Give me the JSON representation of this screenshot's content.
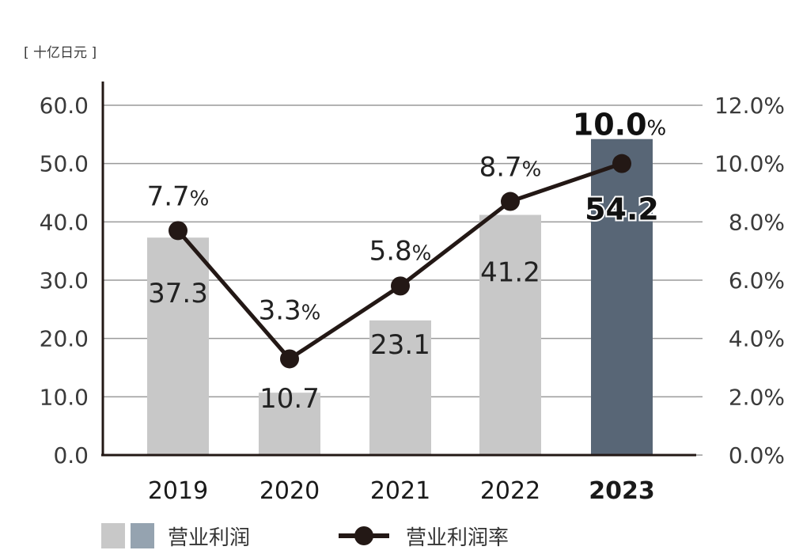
{
  "chart_data": {
    "type": "bar",
    "unit_label": "[ 十亿日元 ]",
    "categories": [
      "2019",
      "2020",
      "2021",
      "2022",
      "2023"
    ],
    "highlight_category": "2023",
    "ylim": [
      0,
      60
    ],
    "yticks": [
      "0.0",
      "10.0",
      "20.0",
      "30.0",
      "40.0",
      "50.0",
      "60.0"
    ],
    "y2lim": [
      0,
      12
    ],
    "y2ticks": [
      "0.0%",
      "2.0%",
      "4.0%",
      "6.0%",
      "8.0%",
      "10.0%",
      "12.0%"
    ],
    "grid": true,
    "series": [
      {
        "name": "营业利润",
        "type": "bar",
        "axis": "left",
        "values": [
          37.3,
          10.7,
          23.1,
          41.2,
          54.2
        ],
        "labels": [
          "37.3",
          "10.7",
          "23.1",
          "41.2",
          "54.2"
        ],
        "color": "#c8c8c8",
        "highlight_color": "#586676"
      },
      {
        "name": "营业利润率",
        "type": "line",
        "axis": "right",
        "values": [
          7.7,
          3.3,
          5.8,
          8.7,
          10.0
        ],
        "labels": [
          "7.7",
          "3.3",
          "5.8",
          "8.7",
          "10.0"
        ],
        "label_unit": "%",
        "color": "#231815"
      }
    ],
    "legend": {
      "position": "bottom-left",
      "bar_swatch_colors": [
        "#c8c8c8",
        "#95a3b0"
      ]
    }
  }
}
